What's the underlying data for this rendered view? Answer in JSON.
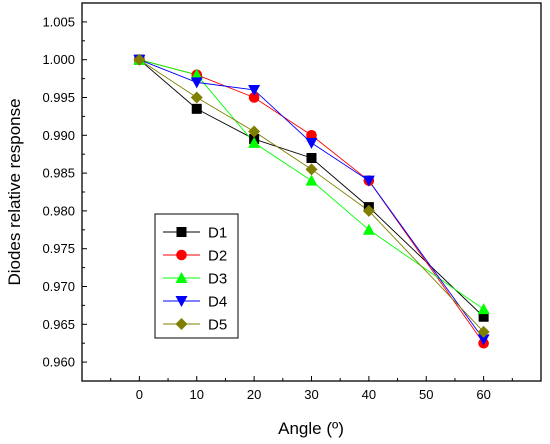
{
  "chart_data": {
    "type": "line",
    "xlabel": "Angle (º)",
    "ylabel": "Diodes relative response",
    "xlim": [
      -10,
      70
    ],
    "ylim": [
      0.9575,
      1.0075
    ],
    "xticks": [
      0,
      10,
      20,
      30,
      40,
      50,
      60
    ],
    "yticks": [
      0.96,
      0.965,
      0.97,
      0.975,
      0.98,
      0.985,
      0.99,
      0.995,
      1.0,
      1.005
    ],
    "ytick_labels": [
      "0.960",
      "0.965",
      "0.970",
      "0.975",
      "0.980",
      "0.985",
      "0.990",
      "0.995",
      "1.000",
      "1.005"
    ],
    "grid": false,
    "legend_position": "lower-left",
    "x": [
      0,
      10,
      20,
      30,
      40,
      60
    ],
    "series": [
      {
        "name": "D1",
        "color": "#000000",
        "marker": "square",
        "values": [
          1.0,
          0.9935,
          0.9895,
          0.987,
          0.9805,
          0.966
        ]
      },
      {
        "name": "D2",
        "color": "#ff0000",
        "marker": "circle",
        "values": [
          1.0,
          0.998,
          0.995,
          0.99,
          0.984,
          0.9625
        ]
      },
      {
        "name": "D3",
        "color": "#00ff00",
        "marker": "triangle-up",
        "values": [
          1.0,
          0.998,
          0.989,
          0.984,
          0.9775,
          0.967
        ]
      },
      {
        "name": "D4",
        "color": "#0000ff",
        "marker": "triangle-down",
        "values": [
          1.0,
          0.997,
          0.996,
          0.989,
          0.984,
          0.963
        ]
      },
      {
        "name": "D5",
        "color": "#808000",
        "marker": "diamond",
        "values": [
          1.0,
          0.995,
          0.9905,
          0.9855,
          0.98,
          0.964
        ]
      }
    ]
  }
}
